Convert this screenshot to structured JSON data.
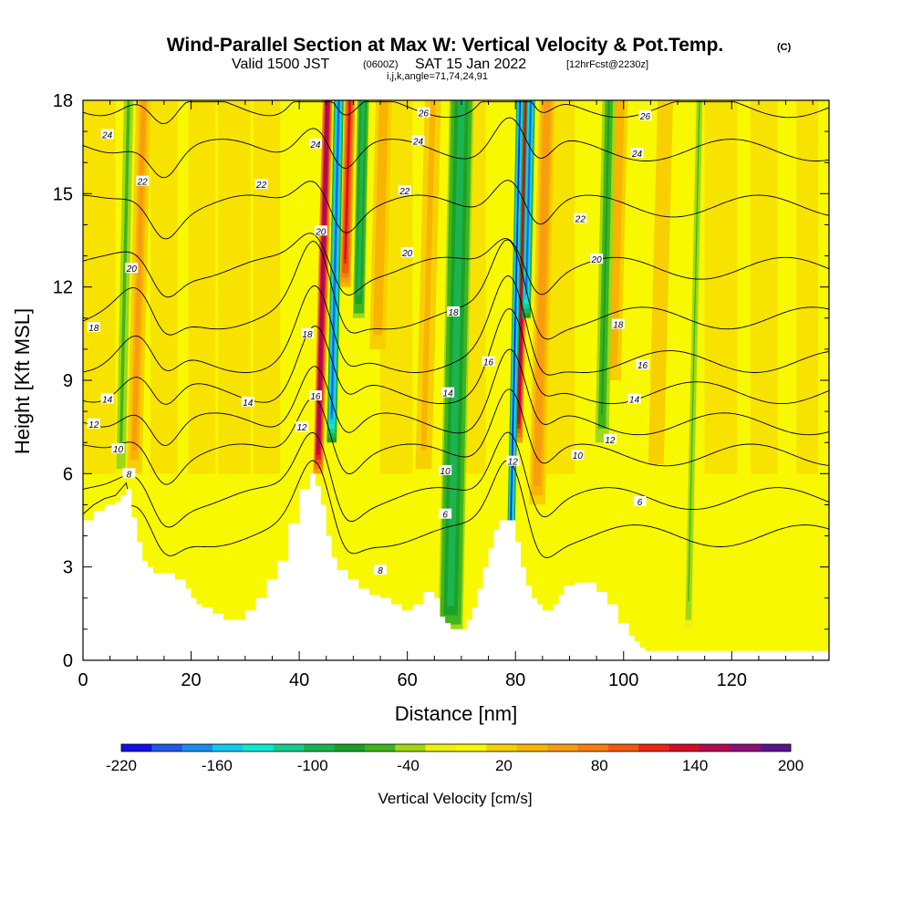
{
  "title": "Wind-Parallel Section at Max W: Vertical Velocity & Pot.Temp.",
  "title_tag": "(C)",
  "subtitle_parts": [
    "Valid 1500 JST",
    "(0600Z)",
    "SAT 15 Jan 2022",
    "[12hrFcst@2230z]"
  ],
  "subtitle2": "i,j,k,angle=71,74,24,91",
  "chart_data": {
    "type": "heatmap",
    "title": "Wind-Parallel Section at Max W: Vertical Velocity & Pot.Temp.",
    "xlabel": "Distance [nm]",
    "ylabel": "Height [Kft MSL]",
    "xlim": [
      0,
      138
    ],
    "ylim": [
      0,
      18
    ],
    "x_ticks": [
      0,
      20,
      40,
      60,
      80,
      100,
      120
    ],
    "y_ticks": [
      0,
      3,
      6,
      9,
      12,
      15,
      18
    ],
    "grid": false,
    "colorbar": {
      "label": "Vertical Velocity [cm/s]",
      "tick_labels": [
        "-220",
        "-160",
        "-100",
        "-40",
        "20",
        "80",
        "140",
        "200"
      ],
      "tick_values": [
        -220,
        -160,
        -100,
        -40,
        20,
        80,
        140,
        200
      ],
      "levels": [
        -220,
        -200,
        -180,
        -160,
        -140,
        -120,
        -100,
        -80,
        -60,
        -40,
        -20,
        0,
        20,
        40,
        60,
        80,
        100,
        120,
        140,
        160,
        180,
        200
      ],
      "colors": [
        "#1010e6",
        "#1e5ae6",
        "#1c8cf0",
        "#14c8f0",
        "#10e8d0",
        "#18cc8c",
        "#1cb450",
        "#1ca028",
        "#40b41c",
        "#a0d814",
        "#f0f010",
        "#f8f800",
        "#f8d000",
        "#f8b400",
        "#f89c10",
        "#f87c10",
        "#f05a10",
        "#e82814",
        "#d40c28",
        "#b40a50",
        "#901078",
        "#5a1490"
      ]
    },
    "terrain_kft": [
      [
        0,
        4.5
      ],
      [
        2,
        4.8
      ],
      [
        4,
        5.0
      ],
      [
        6,
        5.1
      ],
      [
        7,
        5.3
      ],
      [
        8,
        5.5
      ],
      [
        9,
        4.6
      ],
      [
        10,
        3.8
      ],
      [
        11,
        3.2
      ],
      [
        12,
        3.0
      ],
      [
        13,
        2.8
      ],
      [
        15,
        2.8
      ],
      [
        17,
        2.6
      ],
      [
        19,
        2.3
      ],
      [
        20,
        2.0
      ],
      [
        21,
        1.8
      ],
      [
        22,
        1.7
      ],
      [
        24,
        1.5
      ],
      [
        26,
        1.3
      ],
      [
        28,
        1.3
      ],
      [
        30,
        1.6
      ],
      [
        32,
        2.0
      ],
      [
        34,
        2.6
      ],
      [
        36,
        3.2
      ],
      [
        38,
        4.4
      ],
      [
        40,
        5.5
      ],
      [
        42,
        6.0
      ],
      [
        43,
        5.6
      ],
      [
        44,
        5.0
      ],
      [
        45,
        4.0
      ],
      [
        46,
        3.3
      ],
      [
        47,
        2.9
      ],
      [
        49,
        2.6
      ],
      [
        51,
        2.3
      ],
      [
        53,
        2.1
      ],
      [
        55,
        2.0
      ],
      [
        57,
        1.8
      ],
      [
        59,
        1.6
      ],
      [
        61,
        1.8
      ],
      [
        63,
        2.2
      ],
      [
        65,
        2.0
      ],
      [
        66,
        1.4
      ],
      [
        67,
        1.2
      ],
      [
        68,
        1.0
      ],
      [
        70,
        1.0
      ],
      [
        71,
        1.3
      ],
      [
        72,
        1.7
      ],
      [
        73,
        2.3
      ],
      [
        74,
        3.0
      ],
      [
        75,
        3.6
      ],
      [
        76,
        4.2
      ],
      [
        77,
        4.5
      ],
      [
        79,
        4.5
      ],
      [
        80,
        3.8
      ],
      [
        81,
        3.0
      ],
      [
        82,
        2.4
      ],
      [
        83,
        2.0
      ],
      [
        84,
        1.8
      ],
      [
        85,
        1.6
      ],
      [
        86,
        1.6
      ],
      [
        87,
        1.8
      ],
      [
        88,
        2.1
      ],
      [
        89,
        2.4
      ],
      [
        91,
        2.5
      ],
      [
        93,
        2.5
      ],
      [
        95,
        2.2
      ],
      [
        97,
        1.8
      ],
      [
        99,
        1.2
      ],
      [
        101,
        0.8
      ],
      [
        102,
        0.6
      ],
      [
        103,
        0.4
      ],
      [
        104,
        0.3
      ],
      [
        138,
        0.3
      ]
    ],
    "updraft_columns": [
      {
        "x": 9.5,
        "width": 2.8,
        "w_cm_s": 70,
        "base_kft": 6
      },
      {
        "x": 43.5,
        "width": 1.8,
        "w_cm_s": 200,
        "base_kft": 6
      },
      {
        "x": 48.5,
        "width": 2.0,
        "w_cm_s": 150,
        "base_kft": 12
      },
      {
        "x": 54.5,
        "width": 3.0,
        "w_cm_s": 60,
        "base_kft": 10
      },
      {
        "x": 63,
        "width": 3.5,
        "w_cm_s": 45,
        "base_kft": 6
      },
      {
        "x": 80.5,
        "width": 1.6,
        "w_cm_s": 180,
        "base_kft": 7
      },
      {
        "x": 84,
        "width": 3.0,
        "w_cm_s": 80,
        "base_kft": 5
      },
      {
        "x": 98,
        "width": 3.0,
        "w_cm_s": 60,
        "base_kft": 9
      },
      {
        "x": 106,
        "width": 4.0,
        "w_cm_s": 40,
        "base_kft": 6
      }
    ],
    "downdraft_columns": [
      {
        "x": 46,
        "width": 1.8,
        "w_cm_s": -190,
        "base_kft": 7
      },
      {
        "x": 51,
        "width": 2.2,
        "w_cm_s": -90,
        "base_kft": 11
      },
      {
        "x": 79,
        "width": 1.4,
        "w_cm_s": -200,
        "base_kft": 2.5
      },
      {
        "x": 82,
        "width": 1.6,
        "w_cm_s": -180,
        "base_kft": 11
      },
      {
        "x": 68,
        "width": 4.5,
        "w_cm_s": -90,
        "base_kft": 1
      },
      {
        "x": 96,
        "width": 2.5,
        "w_cm_s": -60,
        "base_kft": 7
      },
      {
        "x": 7,
        "width": 2.0,
        "w_cm_s": -50,
        "base_kft": 6
      },
      {
        "x": 112,
        "width": 1.5,
        "w_cm_s": -40,
        "base_kft": 1
      }
    ],
    "theta_contours": [
      {
        "value": 6,
        "base_kft": 4.0
      },
      {
        "value": 8,
        "base_kft": 5.2
      },
      {
        "value": 10,
        "base_kft": 6.6
      },
      {
        "value": 12,
        "base_kft": 7.6
      },
      {
        "value": 14,
        "base_kft": 8.6
      },
      {
        "value": 16,
        "base_kft": 9.6
      },
      {
        "value": 18,
        "base_kft": 11.0
      },
      {
        "value": 20,
        "base_kft": 12.6
      },
      {
        "value": 22,
        "base_kft": 14.6
      },
      {
        "value": 24,
        "base_kft": 16.4
      },
      {
        "value": 26,
        "base_kft": 17.8
      }
    ],
    "contour_labels": [
      {
        "text": "24",
        "x": 4.5,
        "y": 16.9
      },
      {
        "text": "22",
        "x": 11.0,
        "y": 15.4
      },
      {
        "text": "20",
        "x": 9.0,
        "y": 12.6
      },
      {
        "text": "18",
        "x": 2.0,
        "y": 10.7
      },
      {
        "text": "14",
        "x": 4.5,
        "y": 8.4
      },
      {
        "text": "12",
        "x": 2.0,
        "y": 7.6
      },
      {
        "text": "10",
        "x": 6.5,
        "y": 6.8
      },
      {
        "text": "8",
        "x": 8.5,
        "y": 6.0
      },
      {
        "text": "22",
        "x": 33.0,
        "y": 15.3
      },
      {
        "text": "14",
        "x": 30.5,
        "y": 8.3
      },
      {
        "text": "24",
        "x": 43.0,
        "y": 16.6
      },
      {
        "text": "20",
        "x": 44.0,
        "y": 13.8
      },
      {
        "text": "18",
        "x": 41.5,
        "y": 10.5
      },
      {
        "text": "16",
        "x": 43.0,
        "y": 8.5
      },
      {
        "text": "12",
        "x": 40.5,
        "y": 7.5
      },
      {
        "text": "26",
        "x": 63.0,
        "y": 17.6
      },
      {
        "text": "24",
        "x": 62.0,
        "y": 16.7
      },
      {
        "text": "22",
        "x": 59.5,
        "y": 15.1
      },
      {
        "text": "20",
        "x": 60.0,
        "y": 13.1
      },
      {
        "text": "18",
        "x": 68.5,
        "y": 11.2
      },
      {
        "text": "14",
        "x": 67.5,
        "y": 8.6
      },
      {
        "text": "10",
        "x": 67.0,
        "y": 6.1
      },
      {
        "text": "6",
        "x": 67.0,
        "y": 4.7
      },
      {
        "text": "8",
        "x": 55.0,
        "y": 2.9
      },
      {
        "text": "16",
        "x": 75.0,
        "y": 9.6
      },
      {
        "text": "12",
        "x": 79.5,
        "y": 6.4
      },
      {
        "text": "26",
        "x": 104.0,
        "y": 17.5
      },
      {
        "text": "24",
        "x": 102.5,
        "y": 16.3
      },
      {
        "text": "22",
        "x": 92.0,
        "y": 14.2
      },
      {
        "text": "20",
        "x": 95.0,
        "y": 12.9
      },
      {
        "text": "18",
        "x": 99.0,
        "y": 10.8
      },
      {
        "text": "16",
        "x": 103.5,
        "y": 9.5
      },
      {
        "text": "14",
        "x": 102.0,
        "y": 8.4
      },
      {
        "text": "12",
        "x": 97.5,
        "y": 7.1
      },
      {
        "text": "10",
        "x": 91.5,
        "y": 6.6
      },
      {
        "text": "6",
        "x": 103.0,
        "y": 5.1
      }
    ]
  }
}
